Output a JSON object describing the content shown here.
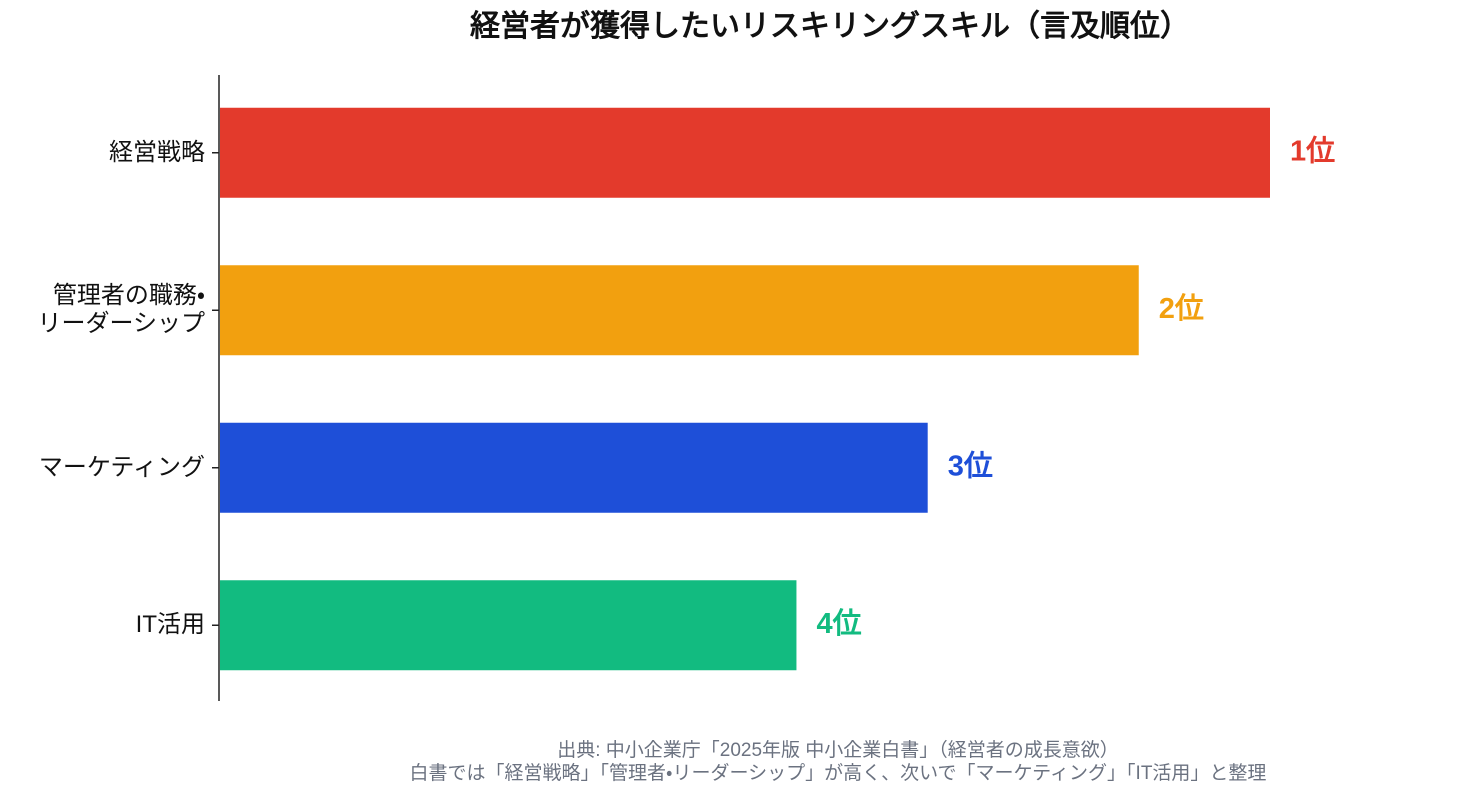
{
  "chart_data": {
    "type": "barh",
    "title": "経営者が獲得したいリスキリングスキル（言及順位）",
    "categories": [
      "経営戦略",
      "管理者の職務・\nリーダーシップ",
      "マーケティング",
      "IT活用"
    ],
    "values": [
      100,
      87.5,
      67.4,
      54.9
    ],
    "rank_labels": [
      "1位",
      "2位",
      "3位",
      "4位"
    ],
    "colors": [
      "#e33a2c",
      "#f2a00f",
      "#1e4fd8",
      "#12bb80"
    ],
    "source": [
      "出典: 中小企業庁「2025年版 中小企業白書」（経営者の成長意欲）",
      "白書では「経営戦略」「管理者・リーダーシップ」が高く、次いで「マーケティング」「IT活用」と整理"
    ]
  }
}
